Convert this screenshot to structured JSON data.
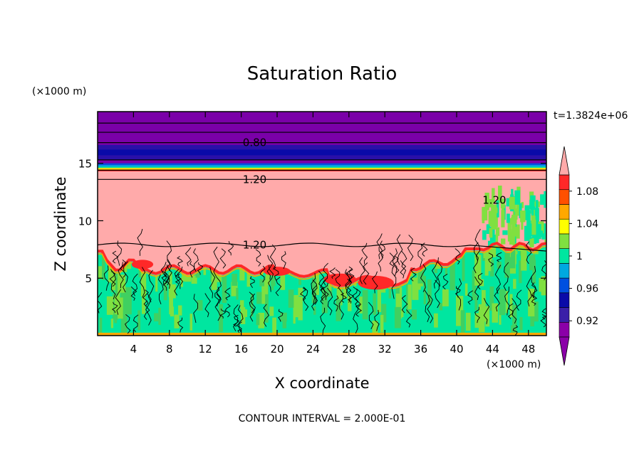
{
  "chart_data": {
    "type": "heatmap",
    "title": "Saturation Ratio",
    "time_label": "t=1.3824e+06",
    "xlabel": "X coordinate",
    "ylabel": "Z coordinate",
    "x_units": "(×1000 m)",
    "y_units": "(×1000 m)",
    "footer": "CONTOUR INTERVAL = 2.000E-01",
    "xlim": [
      0,
      50
    ],
    "ylim": [
      0,
      19.5
    ],
    "x_ticks": [
      "4",
      "8",
      "12",
      "16",
      "20",
      "24",
      "28",
      "32",
      "36",
      "40",
      "44",
      "48"
    ],
    "x_tick_values": [
      4,
      8,
      12,
      16,
      20,
      24,
      28,
      32,
      36,
      40,
      44,
      48
    ],
    "y_ticks": [
      "5",
      "10",
      "15"
    ],
    "y_tick_values": [
      5,
      10,
      15
    ],
    "contour_labels": [
      {
        "text": "0.80",
        "x": 17.5,
        "z": 16.8
      },
      {
        "text": "1.20",
        "x": 17.5,
        "z": 13.6
      },
      {
        "text": "1.20",
        "x": 44.2,
        "z": 11.8
      },
      {
        "text": "1.20",
        "x": 17.5,
        "z": 7.9
      }
    ],
    "colorbar": {
      "labels": [
        "1.08",
        "1.04",
        "1",
        "0.96",
        "0.92"
      ],
      "label_values": [
        1.08,
        1.04,
        1.0,
        0.96,
        0.92
      ],
      "levels": [
        0.9,
        0.92,
        0.94,
        0.96,
        0.98,
        1.0,
        1.02,
        1.04,
        1.06,
        1.08,
        1.1
      ],
      "colors": [
        "#8b00a8",
        "#3a1fa8",
        "#0a0aa8",
        "#0050e0",
        "#00a8e0",
        "#00e6a0",
        "#80e040",
        "#ffff00",
        "#ffa800",
        "#ff5000",
        "#ff2828"
      ],
      "over_color": "#ffaaaa",
      "under_color": "#8b00a8"
    },
    "regions": {
      "upper_layer_color": "#7a00a8",
      "supersaturated_color": "#ffaaaa",
      "lower_mix_colors": [
        "#00e6a0",
        "#80e040",
        "#40d060"
      ]
    }
  }
}
